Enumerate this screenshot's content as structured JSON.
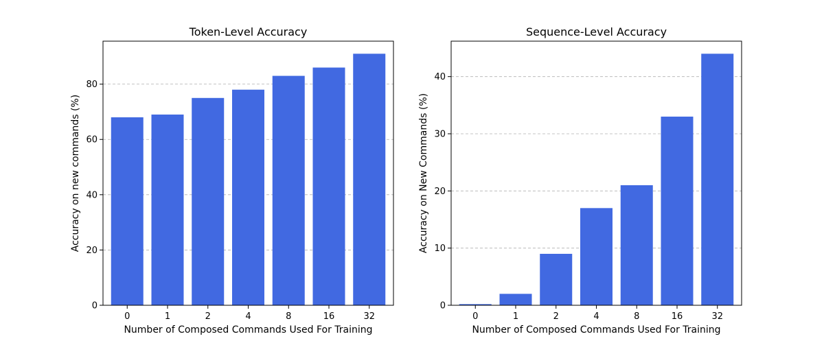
{
  "chart_data": [
    {
      "type": "bar",
      "title": "Token-Level Accuracy",
      "xlabel": "Number of Composed Commands Used For Training",
      "ylabel": "Accuracy on new commands (%)",
      "categories": [
        "0",
        "1",
        "2",
        "4",
        "8",
        "16",
        "32"
      ],
      "values": [
        68,
        69,
        75,
        78,
        83,
        86,
        91
      ],
      "ylim": [
        0,
        95.55
      ],
      "yticks": [
        0,
        20,
        40,
        60,
        80
      ],
      "grid": "y, dashed",
      "color": "#4169e1"
    },
    {
      "type": "bar",
      "title": "Sequence-Level Accuracy",
      "xlabel": "Number of Composed Commands Used For Training",
      "ylabel": "Accuracy on New Commands (%)",
      "categories": [
        "0",
        "1",
        "2",
        "4",
        "8",
        "16",
        "32"
      ],
      "values": [
        0.2,
        2,
        9,
        17,
        21,
        33,
        44
      ],
      "ylim": [
        0,
        46.2
      ],
      "yticks": [
        0,
        10,
        20,
        30,
        40
      ],
      "grid": "y, dashed",
      "color": "#4169e1"
    }
  ]
}
